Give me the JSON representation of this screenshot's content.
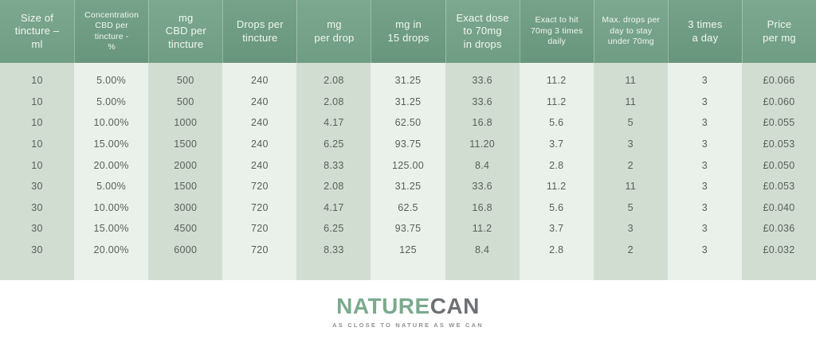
{
  "colors": {
    "header_green": "#719e84",
    "header_green_alt": "#6b977d",
    "stripe_dark": "#d1ddd1",
    "stripe_light": "#eaf0ea",
    "header_text": "#f2f6f1",
    "body_text": "#5a5f59",
    "logo_green": "#7baa8e",
    "logo_gray": "#6d7175",
    "tagline_gray": "#8f9294"
  },
  "chart_data": {
    "type": "table",
    "title": "CBD tincture dosage table",
    "columns": [
      "Size of tincture – ml",
      "Concentration CBD per tincture - %",
      "mg CBD per tincture",
      "Drops per tincture",
      "mg per drop",
      "mg in 15 drops",
      "Exact dose to 70mg in drops",
      "Exact to hit 70mg 3 times daily",
      "Max. drops per day to stay under 70mg",
      "3 times a day",
      "Price per mg"
    ],
    "rows": [
      [
        "10",
        "5.00%",
        "500",
        "240",
        "2.08",
        "31.25",
        "33.6",
        "11.2",
        "11",
        "3",
        "£0.066"
      ],
      [
        "10",
        "5.00%",
        "500",
        "240",
        "2.08",
        "31.25",
        "33.6",
        "11.2",
        "11",
        "3",
        "£0.060"
      ],
      [
        "10",
        "10.00%",
        "1000",
        "240",
        "4.17",
        "62.50",
        "16.8",
        "5.6",
        "5",
        "3",
        "£0.055"
      ],
      [
        "10",
        "15.00%",
        "1500",
        "240",
        "6.25",
        "93.75",
        "11.20",
        "3.7",
        "3",
        "3",
        "£0.053"
      ],
      [
        "10",
        "20.00%",
        "2000",
        "240",
        "8.33",
        "125.00",
        "8.4",
        "2.8",
        "2",
        "3",
        "£0.050"
      ],
      [
        "30",
        "5.00%",
        "1500",
        "720",
        "2.08",
        "31.25",
        "33.6",
        "11.2",
        "11",
        "3",
        "£0.053"
      ],
      [
        "30",
        "10.00%",
        "3000",
        "720",
        "4.17",
        "62.5",
        "16.8",
        "5.6",
        "5",
        "3",
        "£0.040"
      ],
      [
        "30",
        "15.00%",
        "4500",
        "720",
        "6.25",
        "93.75",
        "11.2",
        "3.7",
        "3",
        "3",
        "£0.036"
      ],
      [
        "30",
        "20.00%",
        "6000",
        "720",
        "8.33",
        "125",
        "8.4",
        "2.8",
        "2",
        "3",
        "£0.032"
      ]
    ]
  },
  "table": {
    "columns": [
      {
        "id": "size-ml",
        "size": "md",
        "header_lines": [
          "Size of",
          "tincture –",
          "ml"
        ]
      },
      {
        "id": "concentration",
        "size": "sm",
        "header_lines": [
          "Concentration",
          "CBD per",
          "tincture -",
          "%"
        ]
      },
      {
        "id": "mg-cbd-per-tincture",
        "size": "md",
        "header_lines": [
          "mg",
          "CBD per",
          "tincture"
        ]
      },
      {
        "id": "drops-per-tincture",
        "size": "md",
        "header_lines": [
          "Drops per",
          "tincture"
        ]
      },
      {
        "id": "mg-per-drop",
        "size": "md",
        "header_lines": [
          "mg",
          "per drop"
        ]
      },
      {
        "id": "mg-in-15-drops",
        "size": "md",
        "header_lines": [
          "mg in",
          "15 drops"
        ]
      },
      {
        "id": "exact-dose-70mg",
        "size": "md",
        "header_lines": [
          "Exact dose",
          "to 70mg",
          "in drops"
        ]
      },
      {
        "id": "exact-hit-3-times",
        "size": "sm",
        "header_lines": [
          "Exact to hit",
          "70mg 3 times",
          "daily"
        ]
      },
      {
        "id": "max-drops-per-day",
        "size": "sm",
        "header_lines": [
          "Max. drops per",
          "day to stay",
          "under 70mg"
        ]
      },
      {
        "id": "three-times-a-day",
        "size": "md",
        "header_lines": [
          "3 times",
          "a day"
        ]
      },
      {
        "id": "price-per-mg",
        "size": "md",
        "header_lines": [
          "Price",
          "per mg"
        ]
      }
    ],
    "rows": [
      [
        "10",
        "5.00%",
        "500",
        "240",
        "2.08",
        "31.25",
        "33.6",
        "11.2",
        "11",
        "3",
        "£0.066"
      ],
      [
        "10",
        "5.00%",
        "500",
        "240",
        "2.08",
        "31.25",
        "33.6",
        "11.2",
        "11",
        "3",
        "£0.060"
      ],
      [
        "10",
        "10.00%",
        "1000",
        "240",
        "4.17",
        "62.50",
        "16.8",
        "5.6",
        "5",
        "3",
        "£0.055"
      ],
      [
        "10",
        "15.00%",
        "1500",
        "240",
        "6.25",
        "93.75",
        "11.20",
        "3.7",
        "3",
        "3",
        "£0.053"
      ],
      [
        "10",
        "20.00%",
        "2000",
        "240",
        "8.33",
        "125.00",
        "8.4",
        "2.8",
        "2",
        "3",
        "£0.050"
      ],
      [
        "30",
        "5.00%",
        "1500",
        "720",
        "2.08",
        "31.25",
        "33.6",
        "11.2",
        "11",
        "3",
        "£0.053"
      ],
      [
        "30",
        "10.00%",
        "3000",
        "720",
        "4.17",
        "62.5",
        "16.8",
        "5.6",
        "5",
        "3",
        "£0.040"
      ],
      [
        "30",
        "15.00%",
        "4500",
        "720",
        "6.25",
        "93.75",
        "11.2",
        "3.7",
        "3",
        "3",
        "£0.036"
      ],
      [
        "30",
        "20.00%",
        "6000",
        "720",
        "8.33",
        "125",
        "8.4",
        "2.8",
        "2",
        "3",
        "£0.032"
      ]
    ]
  },
  "footer": {
    "brand_primary": "NATURE",
    "brand_secondary": "CAN",
    "tagline": "AS CLOSE TO NATURE AS WE CAN"
  }
}
